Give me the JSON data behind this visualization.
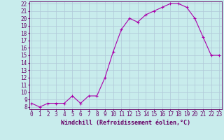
{
  "x": [
    0,
    1,
    2,
    3,
    4,
    5,
    6,
    7,
    8,
    9,
    10,
    11,
    12,
    13,
    14,
    15,
    16,
    17,
    18,
    19,
    20,
    21,
    22,
    23
  ],
  "y": [
    8.5,
    8.0,
    8.5,
    8.5,
    8.5,
    9.5,
    8.5,
    9.5,
    9.5,
    12.0,
    15.5,
    18.5,
    20.0,
    19.5,
    20.5,
    21.0,
    21.5,
    22.0,
    22.0,
    21.5,
    20.0,
    17.5,
    15.0,
    15.0
  ],
  "line_color": "#aa00aa",
  "marker": "+",
  "marker_color": "#aa00aa",
  "bg_color": "#c8ecec",
  "grid_color": "#b0c8d8",
  "tick_color": "#660066",
  "xlabel": "Windchill (Refroidissement éolien,°C)",
  "xlabel_color": "#660066",
  "ylim_min": 8,
  "ylim_max": 22,
  "xlim_min": 0,
  "xlim_max": 23,
  "font_size": 5.5,
  "xlabel_font_size": 6.0
}
